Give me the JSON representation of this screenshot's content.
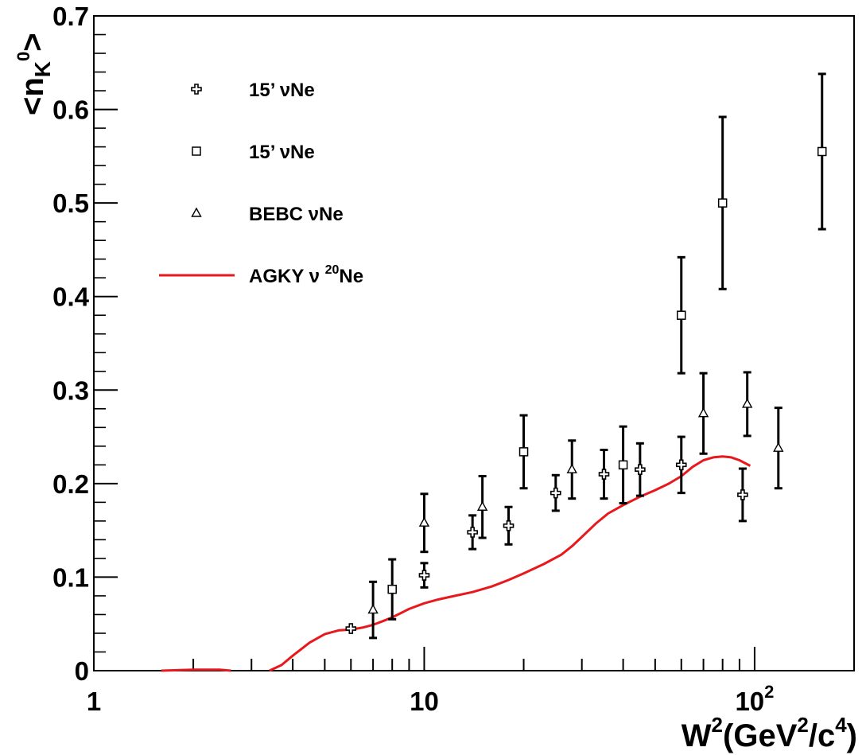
{
  "chart_data": {
    "type": "scatter",
    "title": "",
    "xlabel": {
      "main": "W",
      "sup1": "2",
      "paren_open": "(GeV",
      "sup2": "2",
      "mid": "/c",
      "sup3": "4",
      "paren_close": ")"
    },
    "ylabel": {
      "lt": "<n",
      "sub": "K",
      "sup": "0",
      "gt": ">"
    },
    "xscale": "log",
    "xlim": [
      1,
      200
    ],
    "ylim": [
      0,
      0.7
    ],
    "grid": false,
    "legend_position": "top-left",
    "x_tick_labels": [
      {
        "value": 1,
        "text": "1"
      },
      {
        "value": 10,
        "text": "10"
      },
      {
        "value": 100,
        "base": "10",
        "exp": "2"
      }
    ],
    "y_tick_labels": [
      "0",
      "0.1",
      "0.2",
      "0.3",
      "0.4",
      "0.5",
      "0.6",
      "0.7"
    ],
    "y_tick_values": [
      0,
      0.1,
      0.2,
      0.3,
      0.4,
      0.5,
      0.6,
      0.7
    ],
    "series": [
      {
        "name": "15' νNe",
        "legend": {
          "text": "15’ νNe"
        },
        "marker": "open-cross",
        "points": [
          {
            "x": 6.0,
            "y": 0.045,
            "err": 0.0
          },
          {
            "x": 10.0,
            "y": 0.102,
            "err": 0.013
          },
          {
            "x": 14.0,
            "y": 0.148,
            "err": 0.018
          },
          {
            "x": 18.0,
            "y": 0.155,
            "err": 0.02
          },
          {
            "x": 25.0,
            "y": 0.19,
            "err": 0.019
          },
          {
            "x": 35.0,
            "y": 0.21,
            "err": 0.026
          },
          {
            "x": 45.0,
            "y": 0.215,
            "err": 0.028
          },
          {
            "x": 60.0,
            "y": 0.22,
            "err": 0.03
          },
          {
            "x": 92.0,
            "y": 0.188,
            "err": 0.028
          }
        ]
      },
      {
        "name": "15' νNe",
        "legend": {
          "text": "15’ νNe"
        },
        "marker": "open-square",
        "points": [
          {
            "x": 8.0,
            "y": 0.087,
            "err": 0.032
          },
          {
            "x": 20.0,
            "y": 0.234,
            "err": 0.039
          },
          {
            "x": 40.0,
            "y": 0.22,
            "err": 0.041
          },
          {
            "x": 60.0,
            "y": 0.38,
            "err": 0.062
          },
          {
            "x": 80.0,
            "y": 0.5,
            "err": 0.092
          },
          {
            "x": 160.0,
            "y": 0.555,
            "err": 0.083
          }
        ]
      },
      {
        "name": "BEBC νNe",
        "legend": {
          "text": "BEBC νNe"
        },
        "marker": "open-triangle",
        "points": [
          {
            "x": 7.0,
            "y": 0.065,
            "err": 0.03
          },
          {
            "x": 10.0,
            "y": 0.158,
            "err": 0.031
          },
          {
            "x": 15.0,
            "y": 0.175,
            "err": 0.033
          },
          {
            "x": 28.0,
            "y": 0.215,
            "err": 0.031
          },
          {
            "x": 70.0,
            "y": 0.275,
            "err": 0.043
          },
          {
            "x": 95.0,
            "y": 0.285,
            "err": 0.034
          },
          {
            "x": 118.0,
            "y": 0.238,
            "err": 0.043
          }
        ]
      },
      {
        "name": "AGKY ν ²⁰Ne",
        "legend": {
          "pre": "AGKY ν ",
          "sup": "20",
          "post": "Ne"
        },
        "marker": "line",
        "color": "#e8191c",
        "curve_segments": [
          [
            [
              1.6,
              0.0
            ],
            [
              2.0,
              0.001
            ],
            [
              2.4,
              0.001
            ],
            [
              2.6,
              0.0
            ]
          ],
          [
            [
              3.4,
              0.0
            ],
            [
              3.7,
              0.006
            ],
            [
              4.0,
              0.016
            ],
            [
              4.5,
              0.03
            ],
            [
              5.0,
              0.039
            ],
            [
              5.5,
              0.043
            ],
            [
              6.0,
              0.044
            ],
            [
              6.5,
              0.046
            ],
            [
              7.0,
              0.049
            ],
            [
              7.5,
              0.053
            ],
            [
              8.0,
              0.057
            ],
            [
              9.0,
              0.066
            ],
            [
              10.0,
              0.072
            ],
            [
              11.0,
              0.076
            ],
            [
              12.0,
              0.079
            ],
            [
              14.0,
              0.084
            ],
            [
              16.0,
              0.09
            ],
            [
              18.0,
              0.097
            ],
            [
              20.0,
              0.104
            ],
            [
              23.0,
              0.114
            ],
            [
              26.0,
              0.124
            ],
            [
              28.0,
              0.133
            ],
            [
              30.0,
              0.143
            ],
            [
              33.0,
              0.157
            ],
            [
              36.0,
              0.168
            ],
            [
              40.0,
              0.177
            ],
            [
              45.0,
              0.186
            ],
            [
              50.0,
              0.193
            ],
            [
              55.0,
              0.2
            ],
            [
              60.0,
              0.208
            ],
            [
              65.0,
              0.218
            ],
            [
              70.0,
              0.225
            ],
            [
              75.0,
              0.228
            ],
            [
              80.0,
              0.229
            ],
            [
              85.0,
              0.228
            ],
            [
              90.0,
              0.225
            ],
            [
              97.0,
              0.219
            ]
          ]
        ]
      }
    ]
  }
}
